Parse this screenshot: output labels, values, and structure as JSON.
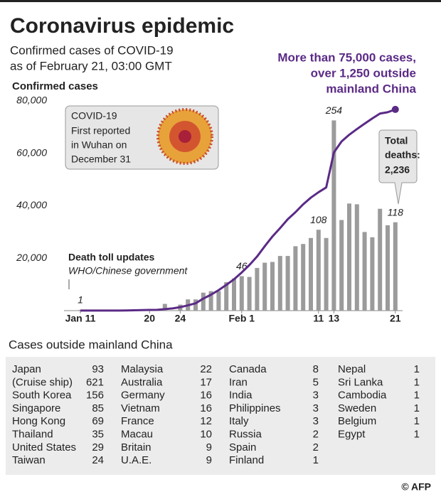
{
  "chart_data": {
    "type": "bar",
    "title": "Coronavirus epidemic",
    "subtitle": [
      "Confirmed cases of COVID-19",
      "as of February 21, 03:00 GMT"
    ],
    "ylabel": "Confirmed cases",
    "headline": [
      "More than 75,000 cases,",
      "over 1,250 outside",
      "mainland China"
    ],
    "callout": [
      "COVID-19",
      "First reported",
      "in Wuhan on",
      "December 31"
    ],
    "death_note": "Death toll updates",
    "death_source": "WHO/Chinese government",
    "total_deaths": [
      "Total",
      "deaths:",
      "2,236"
    ],
    "categories": [
      "Jan 11",
      null,
      null,
      null,
      null,
      null,
      null,
      null,
      null,
      "20",
      null,
      null,
      null,
      "24",
      null,
      null,
      null,
      null,
      null,
      null,
      null,
      "Feb 1",
      null,
      null,
      null,
      null,
      null,
      null,
      null,
      null,
      null,
      "11",
      null,
      "13",
      null,
      null,
      null,
      null,
      null,
      null,
      null,
      "21"
    ],
    "ylim": [
      0,
      80000
    ],
    "yticks": [
      {
        "value": 20000,
        "label": "20,000"
      },
      {
        "value": 40000,
        "label": "40,000"
      },
      {
        "value": 60000,
        "label": "60,000"
      },
      {
        "value": 80000,
        "label": "80,000"
      }
    ],
    "y2lim": [
      0,
      280
    ],
    "series": [
      {
        "name": "Deaths",
        "type": "bar",
        "axis": "y2",
        "color": "#9b9b9b",
        "values": [
          1,
          0,
          0,
          0,
          0,
          0,
          0,
          0,
          0,
          0,
          0,
          9,
          0,
          8,
          15,
          15,
          24,
          26,
          26,
          38,
          43,
          46,
          45,
          57,
          64,
          65,
          73,
          73,
          86,
          89,
          97,
          108,
          97,
          254,
          121,
          143,
          142,
          105,
          98,
          136,
          114,
          118
        ],
        "value_labels": [
          "1",
          null,
          null,
          null,
          null,
          null,
          null,
          null,
          null,
          null,
          null,
          null,
          null,
          null,
          null,
          null,
          null,
          null,
          null,
          null,
          null,
          "46",
          null,
          null,
          null,
          null,
          null,
          null,
          null,
          null,
          null,
          "108",
          null,
          "254",
          null,
          null,
          null,
          null,
          null,
          null,
          null,
          "118"
        ]
      },
      {
        "name": "Confirmed cases",
        "type": "line",
        "color": "#5b2a86",
        "values": [
          41,
          41,
          41,
          41,
          41,
          45,
          62,
          121,
          198,
          282,
          314,
          581,
          846,
          1320,
          2014,
          2798,
          4593,
          6065,
          7818,
          9826,
          11953,
          14557,
          17391,
          20630,
          24554,
          28276,
          31481,
          34886,
          37558,
          40554,
          43103,
          45171,
          46997,
          60328,
          64543,
          67103,
          69265,
          71332,
          73327,
          75184,
          75700,
          76769
        ]
      }
    ]
  },
  "table": {
    "title": "Cases outside mainland China",
    "columns": [
      [
        [
          "Japan",
          93
        ],
        [
          "(Cruise ship)",
          621
        ],
        [
          "South Korea",
          156
        ],
        [
          "Singapore",
          85
        ],
        [
          "Hong Kong",
          69
        ],
        [
          "Thailand",
          35
        ],
        [
          "United States",
          29
        ],
        [
          "Taiwan",
          24
        ]
      ],
      [
        [
          "Malaysia",
          22
        ],
        [
          "Australia",
          17
        ],
        [
          "Germany",
          16
        ],
        [
          "Vietnam",
          16
        ],
        [
          "France",
          12
        ],
        [
          "Macau",
          10
        ],
        [
          "Britain",
          9
        ],
        [
          "U.A.E.",
          9
        ]
      ],
      [
        [
          "Canada",
          8
        ],
        [
          "Iran",
          5
        ],
        [
          "India",
          3
        ],
        [
          "Philippines",
          3
        ],
        [
          "Italy",
          3
        ],
        [
          "Russia",
          2
        ],
        [
          "Spain",
          2
        ],
        [
          "Finland",
          1
        ]
      ],
      [
        [
          "Nepal",
          1
        ],
        [
          "Sri Lanka",
          1
        ],
        [
          "Cambodia",
          1
        ],
        [
          "Sweden",
          1
        ],
        [
          "Belgium",
          1
        ],
        [
          "Egypt",
          1
        ]
      ]
    ]
  },
  "credit": "© AFP"
}
